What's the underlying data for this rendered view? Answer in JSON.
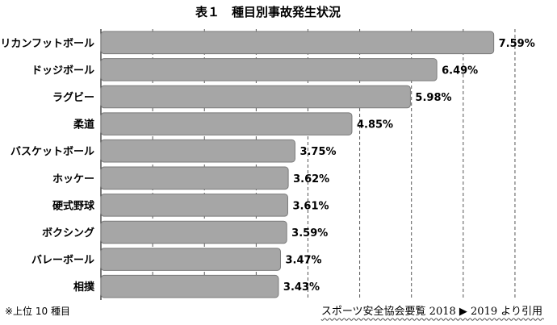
{
  "chart_data": {
    "type": "bar",
    "orientation": "horizontal",
    "title": "表１　種目別事故発生状況",
    "categories": [
      "アメリカンフットボール",
      "ドッジボール",
      "ラグビー",
      "柔道",
      "バスケットボール",
      "ホッケー",
      "硬式野球",
      "ボクシング",
      "バレーボール",
      "相撲"
    ],
    "values": [
      7.59,
      6.49,
      5.98,
      4.85,
      3.75,
      3.62,
      3.61,
      3.59,
      3.47,
      3.43
    ],
    "value_labels": [
      "7.59%",
      "6.49%",
      "5.98%",
      "4.85%",
      "3.75%",
      "3.62%",
      "3.61%",
      "3.59%",
      "3.47%",
      "3.43%"
    ],
    "xlim": [
      0,
      8.5
    ],
    "grid": "vertical dashed",
    "bar_color": "#a6a6a6",
    "bar_edge_color": "#7a7a7a"
  },
  "footnote": "※上位 10 種目",
  "source": "スポーツ安全協会要覧 2018 ▶ 2019 より引用"
}
